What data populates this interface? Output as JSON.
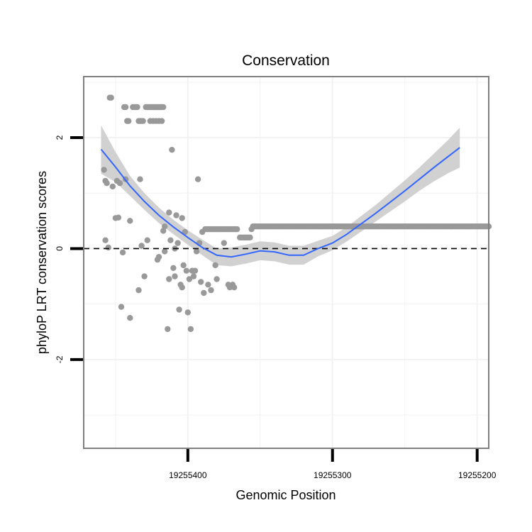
{
  "chart_data": {
    "type": "scatter",
    "title": "Conservation",
    "xlabel": "Genomic Position",
    "ylabel": "phyloP LRT conservation scores",
    "x_reversed": true,
    "xlim": [
      19255472,
      19255192
    ],
    "ylim": [
      -3.6,
      3.1
    ],
    "x_ticks": [
      19255400,
      19255300,
      19255200
    ],
    "x_tick_labels": [
      "19255400",
      "19255300",
      "19255200"
    ],
    "y_ticks": [
      -2,
      0,
      2
    ],
    "y_tick_labels": [
      "-2",
      "0",
      "2"
    ],
    "grid": true,
    "reference_line": {
      "y": 0,
      "style": "dashed",
      "color": "#000000"
    },
    "colors": {
      "points": "#999999",
      "smooth": "#3366FF",
      "ribbon": "#CCCCCC",
      "panel_border": "#7f7f7f",
      "grid": "#f2f2f2"
    },
    "points": [
      [
        19255458,
        1.42
      ],
      [
        19255457,
        1.22
      ],
      [
        19255456,
        1.18
      ],
      [
        19255454,
        2.72
      ],
      [
        19255453,
        2.72
      ],
      [
        19255452,
        1.12
      ],
      [
        19255450,
        0.55
      ],
      [
        19255449,
        1.22
      ],
      [
        19255448,
        0.56
      ],
      [
        19255447,
        1.18
      ],
      [
        19255457,
        0.15
      ],
      [
        19255455,
        0.02
      ],
      [
        19255446,
        -1.05
      ],
      [
        19255445,
        -0.07
      ],
      [
        19255444,
        2.55
      ],
      [
        19255443,
        2.55
      ],
      [
        19255443,
        1.25
      ],
      [
        19255442,
        2.3
      ],
      [
        19255441,
        2.3
      ],
      [
        19255440,
        0.5
      ],
      [
        19255440,
        -1.25
      ],
      [
        19255438,
        2.55
      ],
      [
        19255437,
        2.55
      ],
      [
        19255436,
        2.55
      ],
      [
        19255435,
        2.55
      ],
      [
        19255434,
        2.3
      ],
      [
        19255433,
        2.3
      ],
      [
        19255432,
        2.3
      ],
      [
        19255431,
        2.3
      ],
      [
        19255434,
        -0.75
      ],
      [
        19255433,
        1.25
      ],
      [
        19255432,
        0.05
      ],
      [
        19255430,
        -0.5
      ],
      [
        19255429,
        2.55
      ],
      [
        19255428,
        2.55
      ],
      [
        19255427,
        2.55
      ],
      [
        19255426,
        2.55
      ],
      [
        19255425,
        2.55
      ],
      [
        19255424,
        2.55
      ],
      [
        19255423,
        2.55
      ],
      [
        19255422,
        2.55
      ],
      [
        19255421,
        2.55
      ],
      [
        19255420,
        2.55
      ],
      [
        19255419,
        2.55
      ],
      [
        19255418,
        2.55
      ],
      [
        19255417,
        2.55
      ],
      [
        19255428,
        0.15
      ],
      [
        19255426,
        2.3
      ],
      [
        19255424,
        2.3
      ],
      [
        19255422,
        2.3
      ],
      [
        19255420,
        2.3
      ],
      [
        19255418,
        2.3
      ],
      [
        19255421,
        -0.2
      ],
      [
        19255420,
        -0.15
      ],
      [
        19255417,
        0.32
      ],
      [
        19255416,
        0.4
      ],
      [
        19255416,
        -0.05
      ],
      [
        19255414,
        -1.45
      ],
      [
        19255413,
        -0.55
      ],
      [
        19255413,
        0.65
      ],
      [
        19255412,
        0.15
      ],
      [
        19255411,
        1.78
      ],
      [
        19255410,
        -0.35
      ],
      [
        19255409,
        0.0
      ],
      [
        19255409,
        -0.5
      ],
      [
        19255408,
        0.6
      ],
      [
        19255407,
        0.1
      ],
      [
        19255406,
        -1.1
      ],
      [
        19255405,
        -0.65
      ],
      [
        19255404,
        -0.7
      ],
      [
        19255404,
        0.55
      ],
      [
        19255403,
        -0.3
      ],
      [
        19255402,
        0.3
      ],
      [
        19255401,
        -0.4
      ],
      [
        19255400,
        -1.15
      ],
      [
        19255399,
        -0.55
      ],
      [
        19255398,
        -1.45
      ],
      [
        19255397,
        -0.4
      ],
      [
        19255396,
        -0.5
      ],
      [
        19255395,
        -0.4
      ],
      [
        19255394,
        -0.05
      ],
      [
        19255393,
        1.25
      ],
      [
        19255392,
        0.1
      ],
      [
        19255391,
        -0.6
      ],
      [
        19255390,
        0.3
      ],
      [
        19255389,
        -0.8
      ],
      [
        19255388,
        0.35
      ],
      [
        19255387,
        0.35
      ],
      [
        19255386,
        0.35
      ],
      [
        19255385,
        0.35
      ],
      [
        19255384,
        0.35
      ],
      [
        19255383,
        0.35
      ],
      [
        19255382,
        0.35
      ],
      [
        19255381,
        0.35
      ],
      [
        19255380,
        0.35
      ],
      [
        19255379,
        0.35
      ],
      [
        19255378,
        0.35
      ],
      [
        19255377,
        0.35
      ],
      [
        19255376,
        0.35
      ],
      [
        19255375,
        0.35
      ],
      [
        19255374,
        0.35
      ],
      [
        19255373,
        0.35
      ],
      [
        19255372,
        0.35
      ],
      [
        19255371,
        0.35
      ],
      [
        19255370,
        0.35
      ],
      [
        19255369,
        0.35
      ],
      [
        19255368,
        0.35
      ],
      [
        19255367,
        0.35
      ],
      [
        19255366,
        0.35
      ],
      [
        19255386,
        -0.65
      ],
      [
        19255384,
        -0.75
      ],
      [
        19255381,
        -0.3
      ],
      [
        19255380,
        -0.55
      ],
      [
        19255375,
        0.1
      ],
      [
        19255372,
        -0.65
      ],
      [
        19255371,
        -0.7
      ],
      [
        19255369,
        -0.65
      ],
      [
        19255368,
        -0.7
      ],
      [
        19255364,
        0.2
      ],
      [
        19255363,
        0.2
      ],
      [
        19255362,
        0.2
      ],
      [
        19255361,
        0.2
      ],
      [
        19255360,
        0.2
      ],
      [
        19255359,
        0.2
      ],
      [
        19255358,
        0.2
      ],
      [
        19255357,
        0.2
      ],
      [
        19255356,
        0.35
      ],
      [
        19255355,
        0.4
      ],
      [
        19255354,
        0.4
      ],
      [
        19255353,
        0.4
      ],
      [
        19255352,
        0.4
      ],
      [
        19255351,
        0.4
      ],
      [
        19255350,
        0.4
      ],
      [
        19255349,
        0.4
      ],
      [
        19255348,
        0.4
      ],
      [
        19255347,
        0.4
      ],
      [
        19255346,
        0.4
      ],
      [
        19255345,
        0.4
      ],
      [
        19255344,
        0.4
      ],
      [
        19255343,
        0.4
      ],
      [
        19255342,
        0.4
      ],
      [
        19255341,
        0.4
      ],
      [
        19255340,
        0.4
      ],
      [
        19255339,
        0.4
      ],
      [
        19255338,
        0.4
      ],
      [
        19255337,
        0.4
      ],
      [
        19255336,
        0.4
      ],
      [
        19255335,
        0.4
      ],
      [
        19255334,
        0.4
      ],
      [
        19255333,
        0.4
      ],
      [
        19255332,
        0.4
      ],
      [
        19255331,
        0.4
      ],
      [
        19255330,
        0.4
      ],
      [
        19255329,
        0.4
      ],
      [
        19255328,
        0.4
      ],
      [
        19255327,
        0.4
      ],
      [
        19255326,
        0.4
      ],
      [
        19255325,
        0.4
      ],
      [
        19255324,
        0.4
      ],
      [
        19255323,
        0.4
      ],
      [
        19255322,
        0.4
      ],
      [
        19255321,
        0.4
      ],
      [
        19255320,
        0.4
      ],
      [
        19255319,
        0.4
      ],
      [
        19255318,
        0.4
      ],
      [
        19255317,
        0.4
      ],
      [
        19255316,
        0.4
      ],
      [
        19255315,
        0.4
      ],
      [
        19255314,
        0.4
      ],
      [
        19255313,
        0.4
      ],
      [
        19255312,
        0.4
      ],
      [
        19255311,
        0.4
      ],
      [
        19255310,
        0.4
      ],
      [
        19255309,
        0.4
      ],
      [
        19255308,
        0.4
      ],
      [
        19255307,
        0.4
      ],
      [
        19255306,
        0.4
      ],
      [
        19255305,
        0.4
      ],
      [
        19255304,
        0.4
      ],
      [
        19255303,
        0.4
      ],
      [
        19255302,
        0.4
      ],
      [
        19255301,
        0.4
      ],
      [
        19255300,
        0.4
      ],
      [
        19255299,
        0.4
      ],
      [
        19255298,
        0.4
      ],
      [
        19255297,
        0.4
      ],
      [
        19255296,
        0.4
      ],
      [
        19255295,
        0.4
      ],
      [
        19255294,
        0.4
      ],
      [
        19255293,
        0.4
      ],
      [
        19255292,
        0.4
      ],
      [
        19255291,
        0.4
      ],
      [
        19255290,
        0.4
      ],
      [
        19255289,
        0.4
      ],
      [
        19255288,
        0.4
      ],
      [
        19255287,
        0.4
      ],
      [
        19255286,
        0.4
      ],
      [
        19255285,
        0.4
      ],
      [
        19255284,
        0.4
      ],
      [
        19255283,
        0.4
      ],
      [
        19255282,
        0.4
      ],
      [
        19255281,
        0.4
      ],
      [
        19255280,
        0.4
      ],
      [
        19255279,
        0.4
      ],
      [
        19255278,
        0.4
      ],
      [
        19255277,
        0.4
      ],
      [
        19255276,
        0.4
      ],
      [
        19255275,
        0.4
      ],
      [
        19255274,
        0.4
      ],
      [
        19255273,
        0.4
      ],
      [
        19255272,
        0.4
      ],
      [
        19255271,
        0.4
      ],
      [
        19255270,
        0.4
      ],
      [
        19255269,
        0.4
      ],
      [
        19255268,
        0.4
      ],
      [
        19255267,
        0.4
      ],
      [
        19255266,
        0.4
      ],
      [
        19255265,
        0.4
      ],
      [
        19255264,
        0.4
      ],
      [
        19255263,
        0.4
      ],
      [
        19255262,
        0.4
      ],
      [
        19255261,
        0.4
      ],
      [
        19255260,
        0.4
      ],
      [
        19255259,
        0.4
      ],
      [
        19255258,
        0.4
      ],
      [
        19255257,
        0.4
      ],
      [
        19255256,
        0.4
      ],
      [
        19255255,
        0.4
      ],
      [
        19255254,
        0.4
      ],
      [
        19255253,
        0.4
      ],
      [
        19255252,
        0.4
      ],
      [
        19255251,
        0.4
      ],
      [
        19255250,
        0.4
      ],
      [
        19255249,
        0.4
      ],
      [
        19255248,
        0.4
      ],
      [
        19255247,
        0.4
      ],
      [
        19255246,
        0.4
      ],
      [
        19255245,
        0.4
      ],
      [
        19255244,
        0.4
      ],
      [
        19255243,
        0.4
      ],
      [
        19255242,
        0.4
      ],
      [
        19255241,
        0.4
      ],
      [
        19255240,
        0.4
      ],
      [
        19255239,
        0.4
      ],
      [
        19255238,
        0.4
      ],
      [
        19255237,
        0.4
      ],
      [
        19255236,
        0.4
      ],
      [
        19255235,
        0.4
      ],
      [
        19255234,
        0.4
      ],
      [
        19255233,
        0.4
      ],
      [
        19255232,
        0.4
      ],
      [
        19255231,
        0.4
      ],
      [
        19255230,
        0.4
      ],
      [
        19255229,
        0.4
      ],
      [
        19255228,
        0.4
      ],
      [
        19255227,
        0.4
      ],
      [
        19255226,
        0.4
      ],
      [
        19255225,
        0.4
      ],
      [
        19255224,
        0.4
      ],
      [
        19255223,
        0.4
      ],
      [
        19255222,
        0.4
      ],
      [
        19255221,
        0.4
      ],
      [
        19255220,
        0.4
      ],
      [
        19255219,
        0.4
      ],
      [
        19255218,
        0.4
      ],
      [
        19255217,
        0.4
      ],
      [
        19255216,
        0.4
      ],
      [
        19255215,
        0.4
      ],
      [
        19255214,
        0.4
      ],
      [
        19255213,
        0.4
      ],
      [
        19255212,
        0.4
      ],
      [
        19255211,
        0.4
      ],
      [
        19255210,
        0.4
      ],
      [
        19255209,
        0.4
      ],
      [
        19255208,
        0.4
      ],
      [
        19255207,
        0.4
      ],
      [
        19255206,
        0.4
      ],
      [
        19255205,
        0.4
      ],
      [
        19255204,
        0.4
      ],
      [
        19255203,
        0.4
      ],
      [
        19255202,
        0.4
      ],
      [
        19255201,
        0.4
      ],
      [
        19255200,
        0.4
      ],
      [
        19255199,
        0.4
      ],
      [
        19255198,
        0.4
      ],
      [
        19255197,
        0.4
      ],
      [
        19255196,
        0.4
      ],
      [
        19255195,
        0.4
      ],
      [
        19255194,
        0.4
      ],
      [
        19255193,
        0.4
      ],
      [
        19255192,
        0.4
      ]
    ],
    "smooth": [
      [
        19255460,
        1.79
      ],
      [
        19255450,
        1.47
      ],
      [
        19255440,
        1.13
      ],
      [
        19255430,
        0.85
      ],
      [
        19255420,
        0.6
      ],
      [
        19255410,
        0.39
      ],
      [
        19255400,
        0.2
      ],
      [
        19255390,
        0.02
      ],
      [
        19255380,
        -0.12
      ],
      [
        19255370,
        -0.15
      ],
      [
        19255360,
        -0.1
      ],
      [
        19255350,
        -0.04
      ],
      [
        19255340,
        -0.06
      ],
      [
        19255330,
        -0.12
      ],
      [
        19255320,
        -0.12
      ],
      [
        19255310,
        0.0
      ],
      [
        19255300,
        0.1
      ],
      [
        19255290,
        0.26
      ],
      [
        19255280,
        0.45
      ],
      [
        19255270,
        0.64
      ],
      [
        19255260,
        0.84
      ],
      [
        19255250,
        1.04
      ],
      [
        19255240,
        1.25
      ],
      [
        19255230,
        1.46
      ],
      [
        19255220,
        1.66
      ],
      [
        19255212,
        1.82
      ]
    ],
    "ribbon": [
      [
        19255460,
        1.35,
        2.22
      ],
      [
        19255450,
        1.2,
        1.74
      ],
      [
        19255440,
        0.95,
        1.31
      ],
      [
        19255430,
        0.7,
        1.0
      ],
      [
        19255420,
        0.46,
        0.74
      ],
      [
        19255410,
        0.26,
        0.52
      ],
      [
        19255400,
        0.07,
        0.33
      ],
      [
        19255390,
        -0.12,
        0.16
      ],
      [
        19255380,
        -0.3,
        0.0
      ],
      [
        19255370,
        -0.32,
        0.02
      ],
      [
        19255360,
        -0.27,
        0.07
      ],
      [
        19255350,
        -0.21,
        0.13
      ],
      [
        19255340,
        -0.23,
        0.11
      ],
      [
        19255330,
        -0.29,
        0.05
      ],
      [
        19255320,
        -0.29,
        0.05
      ],
      [
        19255310,
        -0.14,
        0.14
      ],
      [
        19255300,
        -0.03,
        0.23
      ],
      [
        19255290,
        0.13,
        0.39
      ],
      [
        19255280,
        0.31,
        0.59
      ],
      [
        19255270,
        0.49,
        0.79
      ],
      [
        19255260,
        0.67,
        1.01
      ],
      [
        19255250,
        0.85,
        1.23
      ],
      [
        19255240,
        1.04,
        1.46
      ],
      [
        19255230,
        1.21,
        1.71
      ],
      [
        19255220,
        1.36,
        1.96
      ],
      [
        19255212,
        1.46,
        2.18
      ]
    ]
  }
}
